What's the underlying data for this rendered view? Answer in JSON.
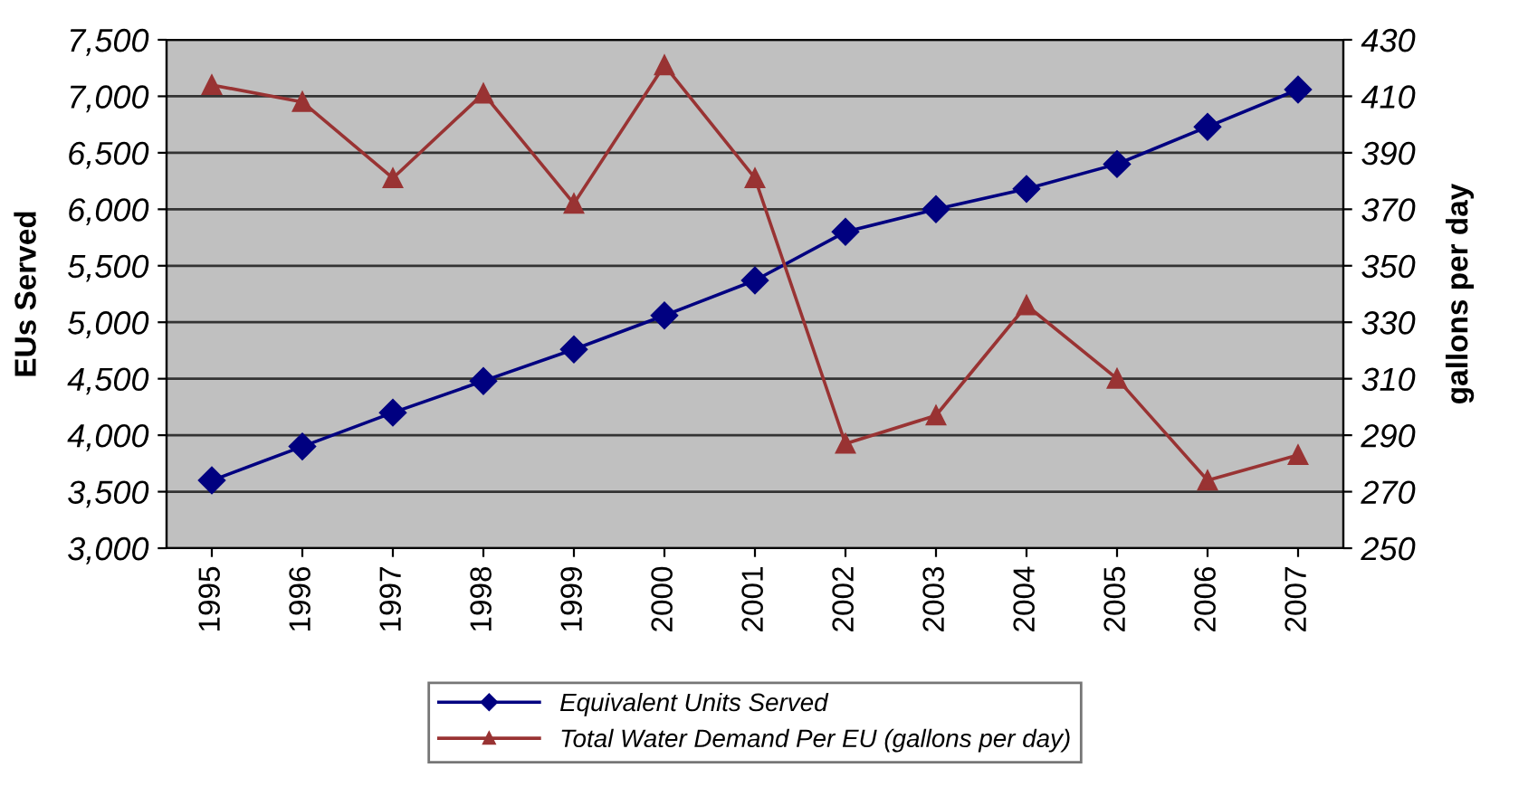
{
  "chart_data": {
    "type": "line",
    "ylabel": "EUs Served",
    "y2label": "gallons per day",
    "categories": [
      "1995",
      "1996",
      "1997",
      "1998",
      "1999",
      "2000",
      "2001",
      "2002",
      "2003",
      "2004",
      "2005",
      "2006",
      "2007"
    ],
    "series": [
      {
        "name": "Equivalent Units Served",
        "color": "#000080",
        "marker": "diamond",
        "values": [
          3600,
          3900,
          4200,
          4480,
          4760,
          5060,
          5370,
          5800,
          6000,
          6180,
          6400,
          6730,
          7060
        ]
      },
      {
        "name": "Total Water Demand Per EU (gallons per day)",
        "color": "#993333",
        "marker": "triangle",
        "axis": "y2",
        "values": [
          414,
          408,
          381,
          411,
          372,
          421,
          381,
          287,
          297,
          336,
          310,
          274,
          283
        ]
      }
    ],
    "ylim": [
      3000,
      7500
    ],
    "yticks": [
      {
        "value": 3000,
        "label": "3,000"
      },
      {
        "value": 3500,
        "label": "3,500"
      },
      {
        "value": 4000,
        "label": "4,000"
      },
      {
        "value": 4500,
        "label": "4,500"
      },
      {
        "value": 5000,
        "label": "5,000"
      },
      {
        "value": 5500,
        "label": "5,500"
      },
      {
        "value": 6000,
        "label": "6,000"
      },
      {
        "value": 6500,
        "label": "6,500"
      },
      {
        "value": 7000,
        "label": "7,000"
      },
      {
        "value": 7500,
        "label": "7,500"
      }
    ],
    "y2lim": [
      250,
      430
    ],
    "y2ticks": [
      250,
      270,
      290,
      310,
      330,
      350,
      370,
      390,
      410,
      430
    ],
    "grid": "y",
    "legend": "bottom",
    "line_style": "solid"
  }
}
